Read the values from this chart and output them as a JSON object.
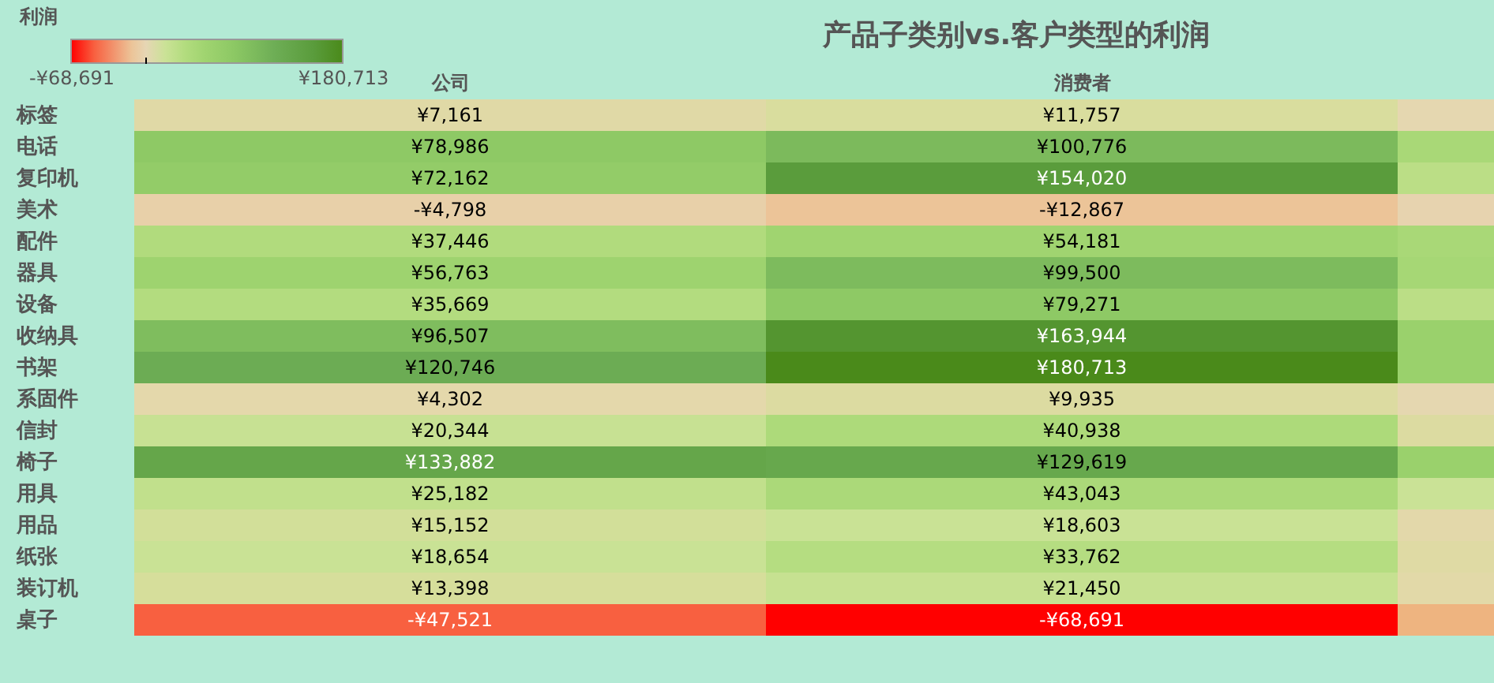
{
  "chart_data": {
    "type": "heatmap",
    "title": "产品子类别vs.客户类型的利润",
    "clabel": "利润",
    "categories": [
      "公司",
      "消费者",
      null
    ],
    "y_categories": [
      "标签",
      "电话",
      "复印机",
      "美术",
      "配件",
      "器具",
      "设备",
      "收纳具",
      "书架",
      "系固件",
      "信封",
      "椅子",
      "用具",
      "用品",
      "纸张",
      "装订机",
      "桌子"
    ],
    "cells": [
      [
        7161,
        11757,
        2000
      ],
      [
        78986,
        100776,
        45000
      ],
      [
        72162,
        154020,
        30000
      ],
      [
        -4798,
        -12867,
        -2000
      ],
      [
        37446,
        54181,
        45000
      ],
      [
        56763,
        99500,
        48000
      ],
      [
        35669,
        79271,
        30000
      ],
      [
        96507,
        163944,
        62000
      ],
      [
        120746,
        180713,
        62000
      ],
      [
        4302,
        9935,
        2000
      ],
      [
        20344,
        40938,
        10000
      ],
      [
        133882,
        129619,
        62000
      ],
      [
        25182,
        43043,
        18000
      ],
      [
        15152,
        18603,
        5000
      ],
      [
        18654,
        33762,
        8000
      ],
      [
        13398,
        21450,
        6000
      ],
      [
        -47521,
        -68691,
        -20000
      ]
    ],
    "cell_labels": [
      [
        "¥7,161",
        "¥11,757",
        null
      ],
      [
        "¥78,986",
        "¥100,776",
        null
      ],
      [
        "¥72,162",
        "¥154,020",
        null
      ],
      [
        "-¥4,798",
        "-¥12,867",
        null
      ],
      [
        "¥37,446",
        "¥54,181",
        null
      ],
      [
        "¥56,763",
        "¥99,500",
        null
      ],
      [
        "¥35,669",
        "¥79,271",
        null
      ],
      [
        "¥96,507",
        "¥163,944",
        null
      ],
      [
        "¥120,746",
        "¥180,713",
        null
      ],
      [
        "¥4,302",
        "¥9,935",
        null
      ],
      [
        "¥20,344",
        "¥40,938",
        null
      ],
      [
        "¥133,882",
        "¥129,619",
        null
      ],
      [
        "¥25,182",
        "¥43,043",
        null
      ],
      [
        "¥15,152",
        "¥18,603",
        null
      ],
      [
        "¥18,654",
        "¥33,762",
        null
      ],
      [
        "¥13,398",
        "¥21,450",
        null
      ],
      [
        "-¥47,521",
        "-¥68,691",
        null
      ]
    ],
    "clim": [
      -68691,
      180713
    ],
    "cticks": [
      {
        "value": -68691,
        "label": "-¥68,691"
      },
      {
        "value": 0,
        "label": null
      },
      {
        "value": 180713,
        "label": "¥180,713"
      }
    ]
  }
}
